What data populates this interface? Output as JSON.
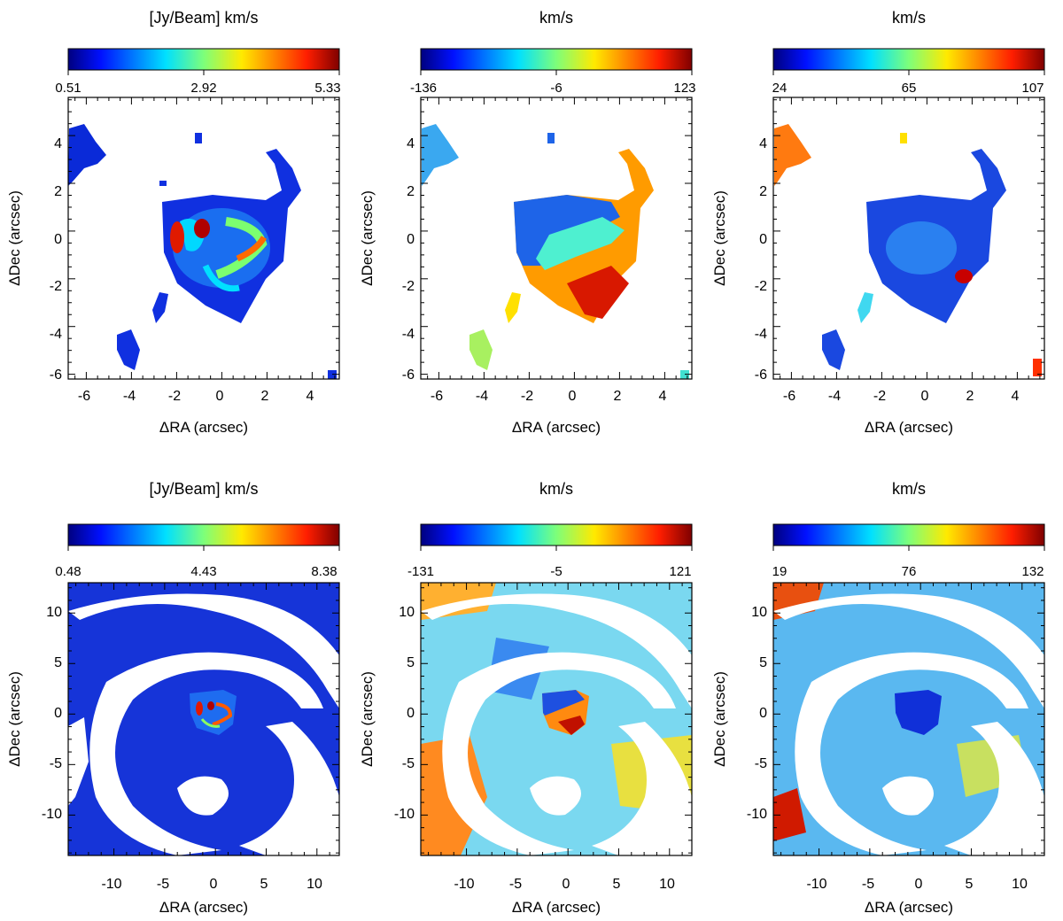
{
  "figure": {
    "description_panels": 6
  },
  "chart_data": [
    {
      "type": "heatmap",
      "row": "top",
      "quantity": "moment0",
      "colorbar": {
        "title": "[Jy/Beam] km/s",
        "min": 0.51,
        "mid": 2.92,
        "max": 5.33,
        "tick_labels": [
          "0.51",
          "2.92",
          "5.33"
        ]
      },
      "xlabel": "ΔRA (arcsec)",
      "ylabel": "ΔDec (arcsec)",
      "xlim": [
        -6.8,
        5.2
      ],
      "ylim": [
        -6.2,
        5.6
      ],
      "xticks": [
        -6,
        -4,
        -2,
        0,
        2,
        4
      ],
      "yticks": [
        -6,
        -4,
        -2,
        0,
        2,
        4
      ],
      "xtick_labels": [
        "-6",
        "-4",
        "-2",
        "0",
        "2",
        "4"
      ],
      "ytick_labels": [
        "-6",
        "-4",
        "-2",
        "0",
        "2",
        "4"
      ]
    },
    {
      "type": "heatmap",
      "row": "top",
      "quantity": "moment1",
      "colorbar": {
        "title": "km/s",
        "min": -136,
        "mid": -6,
        "max": 123,
        "tick_labels": [
          "-136",
          "-6",
          "123"
        ]
      },
      "xlabel": "ΔRA (arcsec)",
      "ylabel": "ΔDec (arcsec)",
      "xlim": [
        -6.8,
        5.2
      ],
      "ylim": [
        -6.2,
        5.6
      ],
      "xticks": [
        -6,
        -4,
        -2,
        0,
        2,
        4
      ],
      "yticks": [
        -6,
        -4,
        -2,
        0,
        2,
        4
      ],
      "xtick_labels": [
        "-6",
        "-4",
        "-2",
        "0",
        "2",
        "4"
      ],
      "ytick_labels": [
        "-6",
        "-4",
        "-2",
        "0",
        "2",
        "4"
      ]
    },
    {
      "type": "heatmap",
      "row": "top",
      "quantity": "moment2",
      "colorbar": {
        "title": "km/s",
        "min": 24,
        "mid": 65,
        "max": 107,
        "tick_labels": [
          "24",
          "65",
          "107"
        ]
      },
      "xlabel": "ΔRA (arcsec)",
      "ylabel": "ΔDec (arcsec)",
      "xlim": [
        -6.8,
        5.2
      ],
      "ylim": [
        -6.2,
        5.6
      ],
      "xticks": [
        -6,
        -4,
        -2,
        0,
        2,
        4
      ],
      "yticks": [
        -6,
        -4,
        -2,
        0,
        2,
        4
      ],
      "xtick_labels": [
        "-6",
        "-4",
        "-2",
        "0",
        "2",
        "4"
      ],
      "ytick_labels": [
        "-6",
        "-4",
        "-2",
        "0",
        "2",
        "4"
      ]
    },
    {
      "type": "heatmap",
      "row": "bottom",
      "quantity": "moment0",
      "colorbar": {
        "title": "[Jy/Beam] km/s",
        "min": 0.48,
        "mid": 4.43,
        "max": 8.38,
        "tick_labels": [
          "0.48",
          "4.43",
          "8.38"
        ]
      },
      "xlabel": "ΔRA (arcsec)",
      "ylabel": "ΔDec (arcsec)",
      "xlim": [
        -14.5,
        12.2
      ],
      "ylim": [
        -14,
        13
      ],
      "xticks": [
        -10,
        -5,
        0,
        5,
        10
      ],
      "yticks": [
        -10,
        -5,
        0,
        5,
        10
      ],
      "xtick_labels": [
        "-10",
        "-5",
        "0",
        "5",
        "10"
      ],
      "ytick_labels": [
        "-10",
        "-5",
        "0",
        "5",
        "10"
      ]
    },
    {
      "type": "heatmap",
      "row": "bottom",
      "quantity": "moment1",
      "colorbar": {
        "title": "km/s",
        "min": -131,
        "mid": -5,
        "max": 121,
        "tick_labels": [
          "-131",
          "-5",
          "121"
        ]
      },
      "xlabel": "ΔRA (arcsec)",
      "ylabel": "ΔDec (arcsec)",
      "xlim": [
        -14.5,
        12.2
      ],
      "ylim": [
        -14,
        13
      ],
      "xticks": [
        -10,
        -5,
        0,
        5,
        10
      ],
      "yticks": [
        -10,
        -5,
        0,
        5,
        10
      ],
      "xtick_labels": [
        "-10",
        "-5",
        "0",
        "5",
        "10"
      ],
      "ytick_labels": [
        "-10",
        "-5",
        "0",
        "5",
        "10"
      ]
    },
    {
      "type": "heatmap",
      "row": "bottom",
      "quantity": "moment2",
      "colorbar": {
        "title": "km/s",
        "min": 19,
        "mid": 76,
        "max": 132,
        "tick_labels": [
          "19",
          "76",
          "132"
        ]
      },
      "xlabel": "ΔRA (arcsec)",
      "ylabel": "ΔDec (arcsec)",
      "xlim": [
        -14.5,
        12.2
      ],
      "ylim": [
        -14,
        13
      ],
      "xticks": [
        -10,
        -5,
        0,
        5,
        10
      ],
      "yticks": [
        -10,
        -5,
        0,
        5,
        10
      ],
      "xtick_labels": [
        "-10",
        "-5",
        "0",
        "5",
        "10"
      ],
      "ytick_labels": [
        "-10",
        "-5",
        "0",
        "5",
        "10"
      ]
    }
  ]
}
